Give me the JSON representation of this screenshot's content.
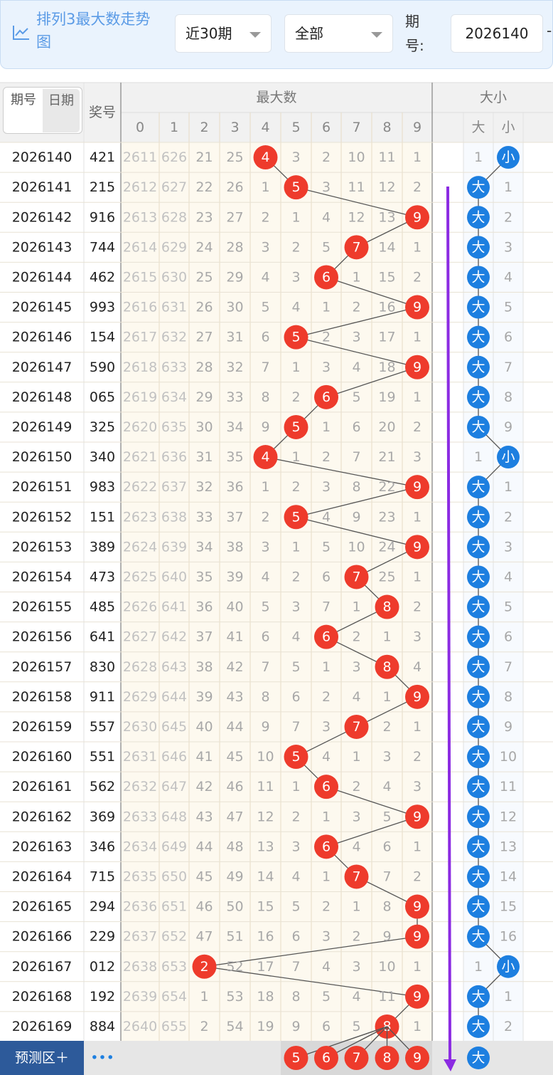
{
  "toolbar": {
    "title": "排列3最大数走势图",
    "range": "近30期",
    "filter": "全部",
    "issue_label": "期号:",
    "issue_value": "2026140",
    "separator": "-"
  },
  "header": {
    "tabs": [
      "期号",
      "日期"
    ],
    "number": "奖号",
    "max_group": "最大数",
    "digits": [
      "0",
      "1",
      "2",
      "3",
      "4",
      "5",
      "6",
      "7",
      "8",
      "9"
    ],
    "size_group": "大小",
    "sizes": [
      "大",
      "小"
    ]
  },
  "rows": [
    {
      "issue": "2026140",
      "number": "421",
      "cells": [
        "2611",
        "626",
        "21",
        "25",
        "4",
        "3",
        "2",
        "10",
        "11",
        "1"
      ],
      "size": [
        "1",
        "小"
      ]
    },
    {
      "issue": "2026141",
      "number": "215",
      "cells": [
        "2612",
        "627",
        "22",
        "26",
        "1",
        "5",
        "3",
        "11",
        "12",
        "2"
      ],
      "size": [
        "大",
        "1"
      ]
    },
    {
      "issue": "2026142",
      "number": "916",
      "cells": [
        "2613",
        "628",
        "23",
        "27",
        "2",
        "1",
        "4",
        "12",
        "13",
        "9"
      ],
      "size": [
        "大",
        "2"
      ]
    },
    {
      "issue": "2026143",
      "number": "744",
      "cells": [
        "2614",
        "629",
        "24",
        "28",
        "3",
        "2",
        "5",
        "7",
        "14",
        "1"
      ],
      "size": [
        "大",
        "3"
      ]
    },
    {
      "issue": "2026144",
      "number": "462",
      "cells": [
        "2615",
        "630",
        "25",
        "29",
        "4",
        "3",
        "6",
        "1",
        "15",
        "2"
      ],
      "size": [
        "大",
        "4"
      ]
    },
    {
      "issue": "2026145",
      "number": "993",
      "cells": [
        "2616",
        "631",
        "26",
        "30",
        "5",
        "4",
        "1",
        "2",
        "16",
        "9"
      ],
      "size": [
        "大",
        "5"
      ]
    },
    {
      "issue": "2026146",
      "number": "154",
      "cells": [
        "2617",
        "632",
        "27",
        "31",
        "6",
        "5",
        "2",
        "3",
        "17",
        "1"
      ],
      "size": [
        "大",
        "6"
      ]
    },
    {
      "issue": "2026147",
      "number": "590",
      "cells": [
        "2618",
        "633",
        "28",
        "32",
        "7",
        "1",
        "3",
        "4",
        "18",
        "9"
      ],
      "size": [
        "大",
        "7"
      ]
    },
    {
      "issue": "2026148",
      "number": "065",
      "cells": [
        "2619",
        "634",
        "29",
        "33",
        "8",
        "2",
        "6",
        "5",
        "19",
        "1"
      ],
      "size": [
        "大",
        "8"
      ]
    },
    {
      "issue": "2026149",
      "number": "325",
      "cells": [
        "2620",
        "635",
        "30",
        "34",
        "9",
        "5",
        "1",
        "6",
        "20",
        "2"
      ],
      "size": [
        "大",
        "9"
      ]
    },
    {
      "issue": "2026150",
      "number": "340",
      "cells": [
        "2621",
        "636",
        "31",
        "35",
        "4",
        "1",
        "2",
        "7",
        "21",
        "3"
      ],
      "size": [
        "1",
        "小"
      ]
    },
    {
      "issue": "2026151",
      "number": "983",
      "cells": [
        "2622",
        "637",
        "32",
        "36",
        "1",
        "2",
        "3",
        "8",
        "22",
        "9"
      ],
      "size": [
        "大",
        "1"
      ]
    },
    {
      "issue": "2026152",
      "number": "151",
      "cells": [
        "2623",
        "638",
        "33",
        "37",
        "2",
        "5",
        "4",
        "9",
        "23",
        "1"
      ],
      "size": [
        "大",
        "2"
      ]
    },
    {
      "issue": "2026153",
      "number": "389",
      "cells": [
        "2624",
        "639",
        "34",
        "38",
        "3",
        "1",
        "5",
        "10",
        "24",
        "9"
      ],
      "size": [
        "大",
        "3"
      ]
    },
    {
      "issue": "2026154",
      "number": "473",
      "cells": [
        "2625",
        "640",
        "35",
        "39",
        "4",
        "2",
        "6",
        "7",
        "25",
        "1"
      ],
      "size": [
        "大",
        "4"
      ]
    },
    {
      "issue": "2026155",
      "number": "485",
      "cells": [
        "2626",
        "641",
        "36",
        "40",
        "5",
        "3",
        "7",
        "1",
        "8",
        "2"
      ],
      "size": [
        "大",
        "5"
      ]
    },
    {
      "issue": "2026156",
      "number": "641",
      "cells": [
        "2627",
        "642",
        "37",
        "41",
        "6",
        "4",
        "6",
        "2",
        "1",
        "3"
      ],
      "size": [
        "大",
        "6"
      ]
    },
    {
      "issue": "2026157",
      "number": "830",
      "cells": [
        "2628",
        "643",
        "38",
        "42",
        "7",
        "5",
        "1",
        "3",
        "8",
        "4"
      ],
      "size": [
        "大",
        "7"
      ]
    },
    {
      "issue": "2026158",
      "number": "911",
      "cells": [
        "2629",
        "644",
        "39",
        "43",
        "8",
        "6",
        "2",
        "4",
        "1",
        "9"
      ],
      "size": [
        "大",
        "8"
      ]
    },
    {
      "issue": "2026159",
      "number": "557",
      "cells": [
        "2630",
        "645",
        "40",
        "44",
        "9",
        "7",
        "3",
        "7",
        "2",
        "1"
      ],
      "size": [
        "大",
        "9"
      ]
    },
    {
      "issue": "2026160",
      "number": "551",
      "cells": [
        "2631",
        "646",
        "41",
        "45",
        "10",
        "5",
        "4",
        "1",
        "3",
        "2"
      ],
      "size": [
        "大",
        "10"
      ]
    },
    {
      "issue": "2026161",
      "number": "562",
      "cells": [
        "2632",
        "647",
        "42",
        "46",
        "11",
        "1",
        "6",
        "2",
        "4",
        "3"
      ],
      "size": [
        "大",
        "11"
      ]
    },
    {
      "issue": "2026162",
      "number": "369",
      "cells": [
        "2633",
        "648",
        "43",
        "47",
        "12",
        "2",
        "1",
        "3",
        "5",
        "9"
      ],
      "size": [
        "大",
        "12"
      ]
    },
    {
      "issue": "2026163",
      "number": "346",
      "cells": [
        "2634",
        "649",
        "44",
        "48",
        "13",
        "3",
        "6",
        "4",
        "6",
        "1"
      ],
      "size": [
        "大",
        "13"
      ]
    },
    {
      "issue": "2026164",
      "number": "715",
      "cells": [
        "2635",
        "650",
        "45",
        "49",
        "14",
        "4",
        "1",
        "7",
        "7",
        "2"
      ],
      "size": [
        "大",
        "14"
      ]
    },
    {
      "issue": "2026165",
      "number": "294",
      "cells": [
        "2636",
        "651",
        "46",
        "50",
        "15",
        "5",
        "2",
        "1",
        "8",
        "9"
      ],
      "size": [
        "大",
        "15"
      ]
    },
    {
      "issue": "2026166",
      "number": "229",
      "cells": [
        "2637",
        "652",
        "47",
        "51",
        "16",
        "6",
        "3",
        "2",
        "9",
        "9"
      ],
      "size": [
        "大",
        "16"
      ]
    },
    {
      "issue": "2026167",
      "number": "012",
      "cells": [
        "2638",
        "653",
        "2",
        "52",
        "17",
        "7",
        "4",
        "3",
        "10",
        "1"
      ],
      "size": [
        "1",
        "小"
      ]
    },
    {
      "issue": "2026168",
      "number": "192",
      "cells": [
        "2639",
        "654",
        "1",
        "53",
        "18",
        "8",
        "5",
        "4",
        "11",
        "9"
      ],
      "size": [
        "大",
        "1"
      ]
    },
    {
      "issue": "2026169",
      "number": "884",
      "cells": [
        "2640",
        "655",
        "2",
        "54",
        "19",
        "9",
        "6",
        "5",
        "8",
        "1"
      ],
      "size": [
        "大",
        "2"
      ]
    }
  ],
  "footer": {
    "label": "预测区＋",
    "more": "•••",
    "predictions": [
      "5",
      "6",
      "7",
      "8",
      "9"
    ],
    "size": "大"
  }
}
